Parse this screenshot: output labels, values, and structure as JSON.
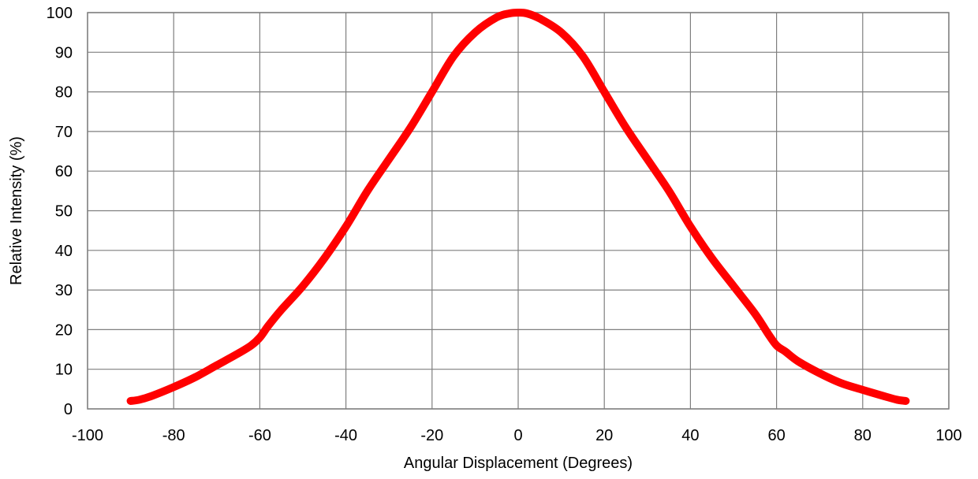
{
  "chart_data": {
    "type": "line",
    "title": "",
    "xlabel": "Angular Displacement (Degrees)",
    "ylabel": "Relative Intensity (%)",
    "xlim": [
      -100,
      100
    ],
    "ylim": [
      0,
      100
    ],
    "xticks": [
      -100,
      -80,
      -60,
      -40,
      -20,
      0,
      20,
      40,
      60,
      80,
      100
    ],
    "yticks": [
      0,
      10,
      20,
      30,
      40,
      50,
      60,
      70,
      80,
      90,
      100
    ],
    "grid": true,
    "legend": "none",
    "series": [
      {
        "color": "#ff0000",
        "x": [
          -90,
          -88,
          -85,
          -80,
          -75,
          -70,
          -65,
          -62,
          -60,
          -58,
          -55,
          -50,
          -45,
          -40,
          -35,
          -30,
          -25,
          -20,
          -15,
          -10,
          -5,
          -2,
          0,
          2,
          5,
          10,
          15,
          20,
          25,
          30,
          35,
          40,
          45,
          50,
          55,
          58,
          60,
          62,
          65,
          70,
          75,
          80,
          85,
          88,
          90
        ],
        "values": [
          2,
          2.3,
          3.3,
          5.5,
          8,
          11,
          14,
          16,
          18,
          21,
          25,
          31,
          38,
          46,
          55,
          63,
          71,
          80,
          89,
          95,
          98.8,
          99.8,
          100,
          99.8,
          98.5,
          95,
          89,
          80,
          71,
          63,
          55,
          46,
          38,
          31,
          24,
          19,
          16,
          14.5,
          12,
          9,
          6.5,
          4.8,
          3.2,
          2.3,
          2
        ]
      }
    ]
  }
}
